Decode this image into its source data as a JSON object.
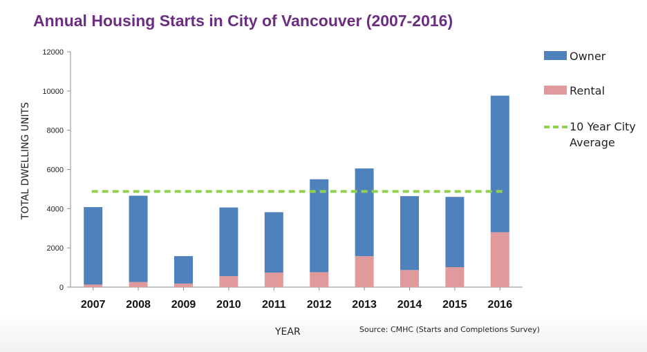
{
  "title": "Annual Housing Starts in City of Vancouver (2007-2016)",
  "source": "Source: CMHC (Starts and Completions Survey)",
  "chart_data": {
    "type": "bar",
    "stacked": true,
    "title": "Annual Housing Starts in City of Vancouver (2007-2016)",
    "xlabel": "YEAR",
    "ylabel": "TOTAL DWELLING UNITS",
    "ylim": [
      0,
      12000
    ],
    "yticks": [
      0,
      2000,
      4000,
      6000,
      8000,
      10000,
      12000
    ],
    "categories": [
      "2007",
      "2008",
      "2009",
      "2010",
      "2011",
      "2012",
      "2013",
      "2014",
      "2015",
      "2016"
    ],
    "series": [
      {
        "name": "Rental",
        "color": "#e09a9b",
        "values": [
          130,
          260,
          180,
          560,
          740,
          760,
          1580,
          870,
          1020,
          2800
        ]
      },
      {
        "name": "Owner",
        "color": "#4f81bd",
        "values": [
          3950,
          4400,
          1400,
          3500,
          3080,
          4740,
          4470,
          3770,
          3580,
          6960
        ]
      }
    ],
    "reference_line": {
      "name": "10 Year City Average",
      "value": 4880,
      "color": "#92d050",
      "style": "dashed"
    },
    "legend": {
      "placement": "right",
      "entries": [
        "Owner",
        "Rental",
        "10 Year City Average"
      ]
    },
    "grid": false
  }
}
